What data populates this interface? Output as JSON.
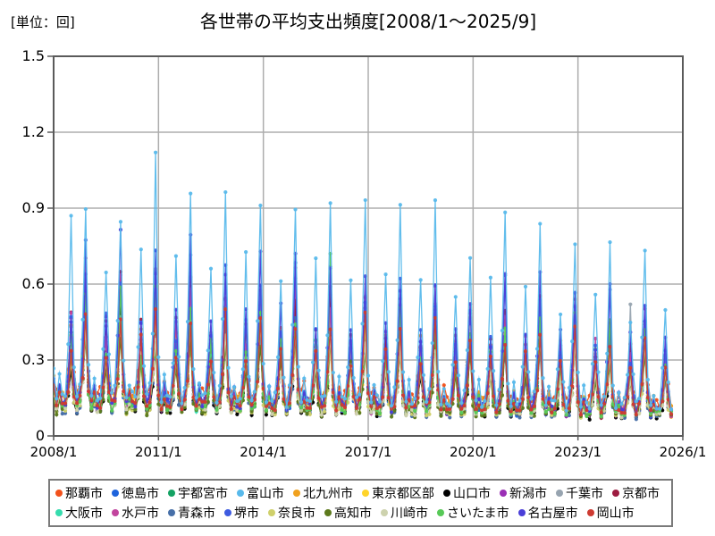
{
  "chart_data": {
    "type": "line",
    "title": "各世帯の平均支出頻度[2008/1～2025/9]",
    "unit_label": "[単位：回]",
    "xlabel": "",
    "ylabel": "回",
    "ylim": [
      0,
      1.5
    ],
    "grid": true,
    "legend_position": "bottom",
    "x_start": "2008/1",
    "x_end": "2025/9",
    "x_months": 213,
    "x_axis_span_months": 216,
    "x_ticks": [
      "2008/1",
      "2011/1",
      "2014/1",
      "2017/1",
      "2020/1",
      "2023/1",
      "2026/1"
    ],
    "x_tick_month_index": [
      0,
      36,
      72,
      108,
      144,
      180,
      216
    ],
    "y_ticks": [
      "1.5",
      "1.2",
      "0.9",
      "0.6",
      "0.3",
      "0"
    ],
    "y_tick_values": [
      1.5,
      1.2,
      0.9,
      0.6,
      0.3,
      0
    ],
    "seasonality": "Monthly series, annual twin peaks each July (smaller) and December (larger), low baseline other months, gradual decline 2008→2025",
    "month_weights": [
      0.2,
      0.05,
      0.14,
      0.05,
      0.08,
      0.36,
      1.0,
      0.3,
      0.06,
      0.1,
      0.4,
      1.0
    ],
    "series": [
      {
        "name": "那覇市",
        "color": "#F2511B",
        "base": 0.15,
        "jul_peak": 0.4,
        "dec_peak": 0.5,
        "end_scale": 0.8
      },
      {
        "name": "徳島市",
        "color": "#1E63DC",
        "base": 0.1,
        "jul_peak": 0.33,
        "dec_peak": 0.46,
        "end_scale": 0.78
      },
      {
        "name": "宇都宮市",
        "color": "#13A263",
        "base": 0.1,
        "jul_peak": 0.36,
        "dec_peak": 0.5,
        "end_scale": 0.76
      },
      {
        "name": "富山市",
        "color": "#58B9EB",
        "base": 0.12,
        "jul_peak": 0.7,
        "dec_peak": 0.97,
        "end_scale": 0.74,
        "top": true,
        "overrides": {
          "6": 0.87,
          "35": 1.12,
          "95": 0.92
        }
      },
      {
        "name": "北九州市",
        "color": "#F0A11E",
        "base": 0.13,
        "jul_peak": 0.4,
        "dec_peak": 0.52,
        "end_scale": 0.78
      },
      {
        "name": "東京都区部",
        "color": "#FFD42A",
        "base": 0.11,
        "jul_peak": 0.36,
        "dec_peak": 0.48,
        "end_scale": 0.76
      },
      {
        "name": "山口市",
        "color": "#000000",
        "base": 0.09,
        "jul_peak": 0.3,
        "dec_peak": 0.45,
        "end_scale": 0.75
      },
      {
        "name": "新潟市",
        "color": "#9A2FB5",
        "base": 0.1,
        "jul_peak": 0.42,
        "dec_peak": 0.6,
        "end_scale": 0.74
      },
      {
        "name": "千葉市",
        "color": "#97A4B0",
        "base": 0.1,
        "jul_peak": 0.38,
        "dec_peak": 0.55,
        "end_scale": 0.76,
        "overrides": {
          "198": 0.52
        }
      },
      {
        "name": "京都市",
        "color": "#9D1C40",
        "base": 0.1,
        "jul_peak": 0.44,
        "dec_peak": 0.62,
        "end_scale": 0.72
      },
      {
        "name": "大阪市",
        "color": "#35DCAE",
        "base": 0.11,
        "jul_peak": 0.36,
        "dec_peak": 0.5,
        "end_scale": 0.76
      },
      {
        "name": "水戸市",
        "color": "#C2459E",
        "base": 0.1,
        "jul_peak": 0.44,
        "dec_peak": 0.63,
        "end_scale": 0.75
      },
      {
        "name": "青森市",
        "color": "#476FA8",
        "base": 0.09,
        "jul_peak": 0.31,
        "dec_peak": 0.45,
        "end_scale": 0.76
      },
      {
        "name": "堺市",
        "color": "#3E5BE0",
        "base": 0.1,
        "jul_peak": 0.45,
        "dec_peak": 0.68,
        "end_scale": 0.74
      },
      {
        "name": "奈良市",
        "color": "#CFD06B",
        "base": 0.09,
        "jul_peak": 0.31,
        "dec_peak": 0.44,
        "end_scale": 0.76
      },
      {
        "name": "高知市",
        "color": "#5D7A1D",
        "base": 0.09,
        "jul_peak": 0.3,
        "dec_peak": 0.42,
        "end_scale": 0.76
      },
      {
        "name": "川崎市",
        "color": "#CDD2AE",
        "base": 0.1,
        "jul_peak": 0.32,
        "dec_peak": 0.45,
        "end_scale": 0.76
      },
      {
        "name": "さいたま市",
        "color": "#57C957",
        "base": 0.1,
        "jul_peak": 0.38,
        "dec_peak": 0.54,
        "end_scale": 0.75,
        "overrides": {
          "95": 0.72
        }
      },
      {
        "name": "名古屋市",
        "color": "#4A3FD8",
        "base": 0.11,
        "jul_peak": 0.5,
        "dec_peak": 0.73,
        "end_scale": 0.74
      },
      {
        "name": "岡山市",
        "color": "#CE3B32",
        "base": 0.11,
        "jul_peak": 0.36,
        "dec_peak": 0.49,
        "end_scale": 0.76
      }
    ],
    "colors": {
      "grid": "#ADADAD",
      "plot_border": "#5A5A5A",
      "background": "#FFFFFF",
      "text": "#000000",
      "legend_border": "#7A7A7A"
    }
  }
}
